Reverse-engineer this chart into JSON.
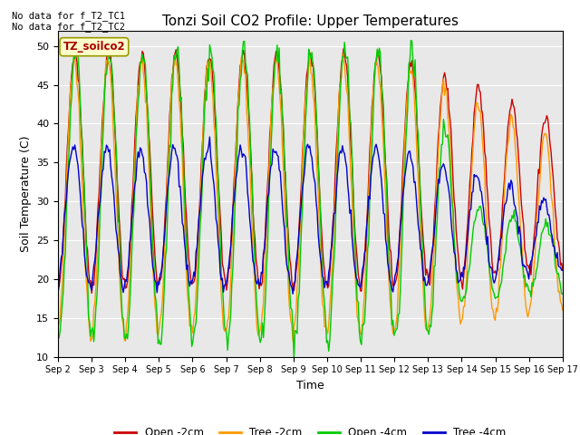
{
  "title": "Tonzi Soil CO2 Profile: Upper Temperatures",
  "xlabel": "Time",
  "ylabel": "Soil Temperature (C)",
  "ylim": [
    10,
    52
  ],
  "xlim": [
    0,
    15
  ],
  "background_color": "#e8e8e8",
  "annotation_text": "No data for f_T2_TC1\nNo data for f_T2_TC2",
  "legend_box_text": "TZ_soilco2",
  "tick_labels": [
    "Sep 2",
    "Sep 3",
    "Sep 4",
    "Sep 5",
    "Sep 6",
    "Sep 7",
    "Sep 8",
    "Sep 9",
    "Sep 10",
    "Sep 11",
    "Sep 12",
    "Sep 13",
    "Sep 14",
    "Sep 15",
    "Sep 16",
    "Sep 17"
  ],
  "series_colors": [
    "#cc0000",
    "#ff9900",
    "#00cc00",
    "#0000cc"
  ],
  "series_labels": [
    "Open -2cm",
    "Tree -2cm",
    "Open -4cm",
    "Tree -4cm"
  ],
  "yticks": [
    10,
    15,
    20,
    25,
    30,
    35,
    40,
    45,
    50
  ],
  "n_points": 480
}
